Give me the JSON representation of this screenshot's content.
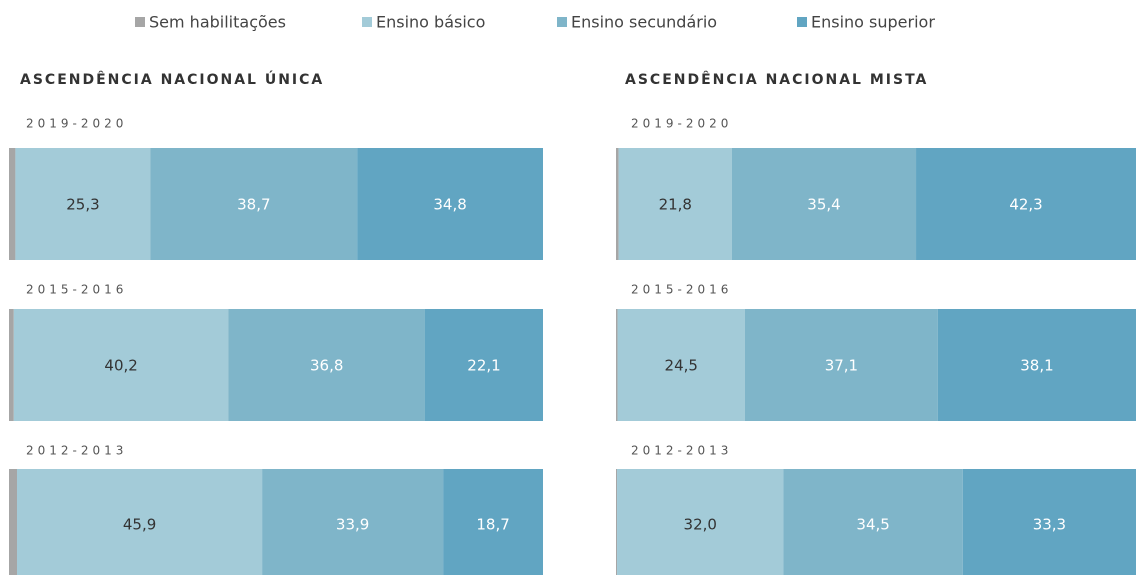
{
  "chart_data": [
    {
      "type": "stacked_bar_100",
      "title": "ASCENDÊNCIA NACIONAL ÚNICA",
      "categories": [
        "2019-2020",
        "2015-2016",
        "2012-2013"
      ],
      "xlim": [
        0,
        100
      ],
      "series": [
        {
          "name": "Sem habilitações",
          "color": "#a6a6a6",
          "values": [
            1.2,
            0.9,
            1.5
          ]
        },
        {
          "name": "Ensino básico",
          "color": "#a3cbd8",
          "values": [
            25.3,
            40.2,
            45.9
          ],
          "value_labels": [
            "25,3",
            "40,2",
            "45,9"
          ]
        },
        {
          "name": "Ensino secundário",
          "color": "#7fb5c9",
          "values": [
            38.7,
            36.8,
            33.9
          ],
          "value_labels": [
            "38,7",
            "36,8",
            "33,9"
          ]
        },
        {
          "name": "Ensino superior",
          "color": "#61a5c2",
          "values": [
            34.8,
            22.1,
            18.7
          ],
          "value_labels": [
            "34,8",
            "22,1",
            "18,7"
          ]
        }
      ]
    },
    {
      "type": "stacked_bar_100",
      "title": "ASCENDÊNCIA NACIONAL MISTA",
      "categories": [
        "2019-2020",
        "2015-2016",
        "2012-2013"
      ],
      "xlim": [
        0,
        100
      ],
      "series": [
        {
          "name": "Sem habilitações",
          "color": "#a6a6a6",
          "values": [
            0.5,
            0.3,
            0.2
          ]
        },
        {
          "name": "Ensino básico",
          "color": "#a3cbd8",
          "values": [
            21.8,
            24.5,
            32.0
          ],
          "value_labels": [
            "21,8",
            "24,5",
            "32,0"
          ]
        },
        {
          "name": "Ensino secundário",
          "color": "#7fb5c9",
          "values": [
            35.4,
            37.1,
            34.5
          ],
          "value_labels": [
            "35,4",
            "37,1",
            "34,5"
          ]
        },
        {
          "name": "Ensino superior",
          "color": "#61a5c2",
          "values": [
            42.3,
            38.1,
            33.3
          ],
          "value_labels": [
            "42,3",
            "38,1",
            "33,3"
          ]
        }
      ]
    }
  ]
}
